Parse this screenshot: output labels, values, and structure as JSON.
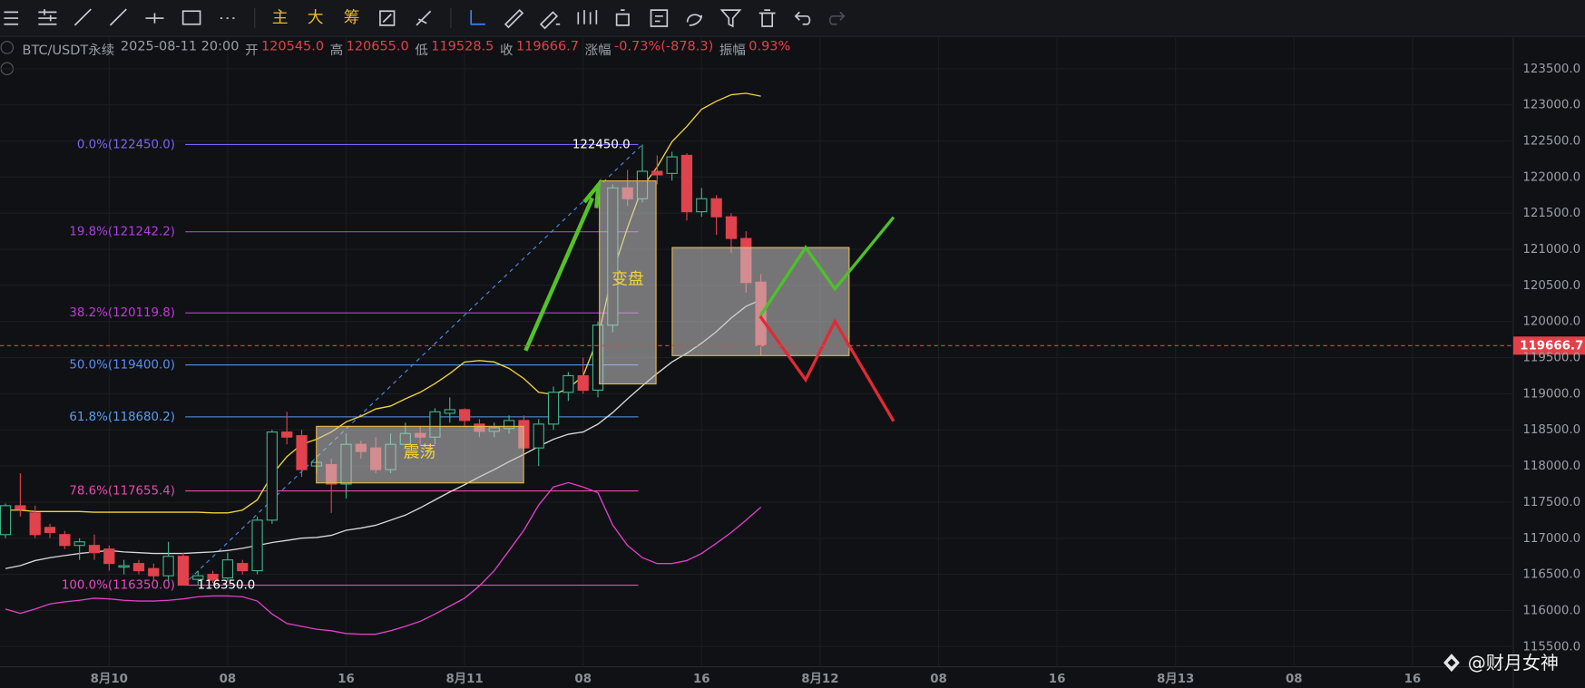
{
  "toolbar": {
    "buttons": [
      "主",
      "大",
      "筹"
    ]
  },
  "header": {
    "symbol": "BTC/USDT永续",
    "time": "2025-08-11 20:00",
    "fields": [
      {
        "label": "开",
        "value": "120545.0"
      },
      {
        "label": "高",
        "value": "120655.0"
      },
      {
        "label": "低",
        "value": "119528.5"
      },
      {
        "label": "收",
        "value": "119666.7"
      },
      {
        "label": "涨幅",
        "value": "-0.73%(-878.3)"
      },
      {
        "label": "振幅",
        "value": "0.93%"
      }
    ]
  },
  "watermark": "@财月女神",
  "chart_data": {
    "type": "candlestick",
    "x": [
      -7,
      -6,
      -5,
      -4,
      -3,
      -2,
      -1,
      0,
      1,
      2,
      3,
      4,
      5,
      6,
      7,
      8,
      9,
      10,
      11,
      12,
      13,
      14,
      15,
      16,
      17,
      18,
      19,
      20,
      21,
      22,
      23,
      24,
      25,
      26,
      27,
      28,
      29,
      30,
      31,
      32,
      33,
      34,
      35,
      36,
      37,
      38,
      39,
      40,
      41,
      42,
      43,
      44
    ],
    "open": [
      117050,
      117450,
      117350,
      117150,
      117050,
      116900,
      116900,
      116850,
      116600,
      116650,
      116580,
      116480,
      116750,
      116430,
      116500,
      116450,
      116650,
      116550,
      117250,
      118470,
      118420,
      118000,
      118020,
      117750,
      118300,
      118250,
      117950,
      118300,
      118450,
      118400,
      118730,
      118780,
      118580,
      118480,
      118520,
      118630,
      118250,
      118580,
      119020,
      119250,
      119050,
      119950,
      121850,
      121700,
      122080,
      122050,
      122300,
      121520,
      121700,
      121450,
      121150,
      120545
    ],
    "high": [
      117480,
      117900,
      117450,
      117200,
      117100,
      117000,
      117050,
      116900,
      116700,
      116700,
      116650,
      116950,
      116800,
      116550,
      116550,
      116800,
      116700,
      117300,
      118500,
      118750,
      118500,
      118150,
      118100,
      118450,
      118350,
      118400,
      118450,
      118600,
      118550,
      118800,
      118950,
      118800,
      118650,
      118600,
      118700,
      118700,
      118650,
      119100,
      119300,
      119500,
      120000,
      121900,
      122100,
      122450,
      122300,
      122350,
      122330,
      121850,
      121750,
      121500,
      121250,
      120655
    ],
    "low": [
      117000,
      117300,
      117000,
      117000,
      116850,
      116700,
      116700,
      116550,
      116500,
      116500,
      116400,
      116400,
      116350,
      116350,
      116380,
      116400,
      116500,
      116500,
      117200,
      118300,
      117850,
      117900,
      117350,
      117550,
      118100,
      117900,
      117900,
      118250,
      118300,
      118300,
      118600,
      118550,
      118400,
      118400,
      118450,
      118200,
      118000,
      118500,
      118900,
      119000,
      118950,
      119850,
      121600,
      121650,
      121900,
      121950,
      121400,
      121450,
      121200,
      120950,
      120400,
      119528.5
    ],
    "close": [
      117450,
      117400,
      117050,
      117080,
      116900,
      116950,
      116800,
      116650,
      116620,
      116550,
      116480,
      116750,
      116350,
      116480,
      116420,
      116700,
      116550,
      117250,
      118470,
      118400,
      117950,
      118050,
      117750,
      118300,
      118200,
      117950,
      118300,
      118450,
      118400,
      118750,
      118780,
      118630,
      118480,
      118530,
      118630,
      118250,
      118580,
      119020,
      119250,
      119050,
      119950,
      121850,
      121700,
      122080,
      122030,
      122280,
      121520,
      121700,
      121450,
      121150,
      120540,
      119666.7
    ],
    "up_color": "#3fb68b",
    "down_color": "#e0434d",
    "lines": [
      {
        "color": "#f2d33c",
        "values": [
          117390,
          117390,
          117370,
          117370,
          117370,
          117370,
          117360,
          117360,
          117360,
          117360,
          117360,
          117360,
          117360,
          117360,
          117350,
          117350,
          117390,
          117530,
          117880,
          118130,
          118300,
          118370,
          118470,
          118610,
          118690,
          118790,
          118830,
          118930,
          119020,
          119140,
          119280,
          119440,
          119460,
          119440,
          119350,
          119210,
          119020,
          118990,
          119070,
          119250,
          119770,
          120680,
          121300,
          121860,
          122140,
          122490,
          122700,
          122940,
          123050,
          123140,
          123160,
          123120
        ]
      },
      {
        "color": "#d8d8d8",
        "values": [
          116580,
          116620,
          116690,
          116730,
          116760,
          116790,
          116810,
          116830,
          116810,
          116800,
          116790,
          116790,
          116790,
          116800,
          116810,
          116830,
          116860,
          116900,
          116940,
          116970,
          117000,
          117010,
          117040,
          117110,
          117140,
          117180,
          117250,
          117320,
          117420,
          117530,
          117640,
          117740,
          117850,
          117950,
          118060,
          118160,
          118270,
          118370,
          118440,
          118470,
          118580,
          118740,
          118930,
          119110,
          119280,
          119440,
          119560,
          119700,
          119860,
          120050,
          120210,
          120300
        ]
      },
      {
        "color": "#e040c8",
        "values": [
          116020,
          115960,
          116020,
          116090,
          116120,
          116140,
          116170,
          116160,
          116140,
          116130,
          116130,
          116140,
          116160,
          116190,
          116200,
          116200,
          116190,
          116130,
          115950,
          115820,
          115780,
          115740,
          115720,
          115680,
          115670,
          115670,
          115720,
          115780,
          115850,
          115950,
          116060,
          116170,
          116340,
          116550,
          116830,
          117110,
          117460,
          117710,
          117770,
          117710,
          117630,
          117180,
          116900,
          116730,
          116650,
          116650,
          116690,
          116790,
          116930,
          117080,
          117250,
          117430
        ]
      }
    ],
    "levels": [
      {
        "label": "0.0%(122450.0)",
        "value": 122450,
        "color": "#7a63f5"
      },
      {
        "label": "19.8%(121242.2)",
        "value": 121242.2,
        "color": "#b03ee0"
      },
      {
        "label": "38.2%(120119.8)",
        "value": 120119.8,
        "color": "#c03ad8"
      },
      {
        "label": "50.0%(119400.0)",
        "value": 119400,
        "color": "#5a8ef2"
      },
      {
        "label": "61.8%(118680.2)",
        "value": 118680.2,
        "color": "#5a9cf2"
      },
      {
        "label": "78.6%(117655.4)",
        "value": 117655.4,
        "color": "#e44aae"
      },
      {
        "label": "100.0%(116350.0)",
        "value": 116350,
        "color": "#e44ac4"
      }
    ],
    "annotations": [
      "震荡",
      "变盘"
    ],
    "price_labels": [
      {
        "label": "122450.0",
        "value": 122450,
        "x": 36
      },
      {
        "label": "116350.0",
        "value": 116350,
        "x": 5
      }
    ],
    "last_price": {
      "value": 119666.7,
      "label": "119666.7",
      "color": "#e5404a"
    },
    "xlim": [
      -7.37,
      94.8
    ],
    "ylim": [
      115220,
      123934
    ],
    "xticks": [
      {
        "value": 0,
        "label": "8月10"
      },
      {
        "value": 8,
        "label": "08"
      },
      {
        "value": 16,
        "label": "16"
      },
      {
        "value": 24,
        "label": "8月11"
      },
      {
        "value": 32,
        "label": "08"
      },
      {
        "value": 40,
        "label": "16"
      },
      {
        "value": 48,
        "label": "8月12"
      },
      {
        "value": 56,
        "label": "08"
      },
      {
        "value": 64,
        "label": "16"
      },
      {
        "value": 72,
        "label": "8月13"
      },
      {
        "value": 80,
        "label": "08"
      },
      {
        "value": 88,
        "label": "16"
      }
    ],
    "yticks": [
      {
        "value": 115500,
        "label": "115500.0"
      },
      {
        "value": 116000,
        "label": "116000.0"
      },
      {
        "value": 116500,
        "label": "116500.0"
      },
      {
        "value": 117000,
        "label": "117000.0"
      },
      {
        "value": 117500,
        "label": "117500.0"
      },
      {
        "value": 118000,
        "label": "118000.0"
      },
      {
        "value": 118500,
        "label": "118500.0"
      },
      {
        "value": 119000,
        "label": "119000.0"
      },
      {
        "value": 119500,
        "label": "119500.0"
      },
      {
        "value": 120000,
        "label": "120000.0"
      },
      {
        "value": 120500,
        "label": "120500.0"
      },
      {
        "value": 121000,
        "label": "121000.0"
      },
      {
        "value": 121500,
        "label": "121500.0"
      },
      {
        "value": 122000,
        "label": "122000.0"
      },
      {
        "value": 122500,
        "label": "122500.0"
      },
      {
        "value": 123000,
        "label": "123000.0"
      },
      {
        "value": 123500,
        "label": "123500.0"
      }
    ],
    "grid": true
  }
}
